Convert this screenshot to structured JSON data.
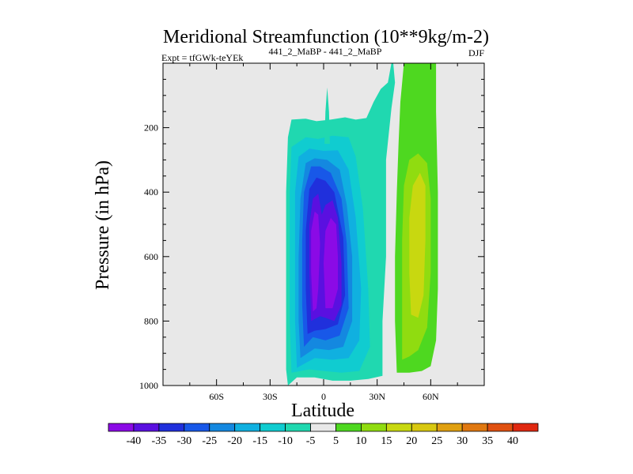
{
  "chart_data": {
    "type": "heatmap",
    "title": "Meridional Streamfunction (10**9kg/m-2)",
    "left_label": "Expt = tfGWk-teYEk",
    "center_label": "441_2_MaBP - 441_2_MaBP",
    "right_label": "DJF",
    "xlabel": "Latitude",
    "ylabel": "Pressure (in hPa)",
    "xlim": [
      -90,
      90
    ],
    "ylim": [
      1000,
      0
    ],
    "x_ticks": [
      {
        "value": -60,
        "label": "60S"
      },
      {
        "value": -30,
        "label": "30S"
      },
      {
        "value": 0,
        "label": "0"
      },
      {
        "value": 30,
        "label": "30N"
      },
      {
        "value": 60,
        "label": "60N"
      }
    ],
    "y_ticks": [
      {
        "value": 200,
        "label": "200"
      },
      {
        "value": 400,
        "label": "400"
      },
      {
        "value": 600,
        "label": "600"
      },
      {
        "value": 800,
        "label": "800"
      },
      {
        "value": 1000,
        "label": "1000"
      }
    ],
    "background_color": "#e8e8e8",
    "levels": [
      -40,
      -35,
      -30,
      -25,
      -20,
      -15,
      -10,
      -5,
      5,
      10,
      15,
      20,
      25,
      30,
      35,
      40
    ],
    "colorbar_colors": [
      "#8b0ae6",
      "#5a10e0",
      "#2030dc",
      "#1858e8",
      "#1488e0",
      "#10b0e0",
      "#10ccd0",
      "#20d8b0",
      "#e8e8e8",
      "#4ed820",
      "#90dc10",
      "#c8d810",
      "#d8c810",
      "#e0a010",
      "#e07810",
      "#e05010",
      "#e02810"
    ],
    "cells": [
      {
        "name": "southern-cell",
        "color": "#20d8b0",
        "value": -5,
        "points": [
          [
            -20,
            1000
          ],
          [
            -21,
            950
          ],
          [
            -21,
            800
          ],
          [
            -21,
            600
          ],
          [
            -21,
            400
          ],
          [
            -20,
            230
          ],
          [
            -18,
            175
          ],
          [
            -10,
            172
          ],
          [
            -4,
            180
          ],
          [
            4,
            175
          ],
          [
            12,
            168
          ],
          [
            18,
            175
          ],
          [
            24,
            170
          ],
          [
            28,
            120
          ],
          [
            32,
            80
          ],
          [
            36,
            60
          ],
          [
            38,
            0
          ],
          [
            39,
            0
          ],
          [
            40,
            60
          ],
          [
            38,
            140
          ],
          [
            35,
            300
          ],
          [
            35,
            600
          ],
          [
            33,
            800
          ],
          [
            33,
            970
          ],
          [
            25,
            980
          ],
          [
            15,
            985
          ],
          [
            5,
            985
          ],
          [
            -5,
            975
          ],
          [
            -15,
            975
          ]
        ]
      },
      {
        "name": "southern-cell",
        "color": "#10ccd0",
        "value": -10,
        "points": [
          [
            -18,
            960
          ],
          [
            -19,
            800
          ],
          [
            -19,
            600
          ],
          [
            -19,
            400
          ],
          [
            -18,
            260
          ],
          [
            -10,
            230
          ],
          [
            -3,
            235
          ],
          [
            5,
            225
          ],
          [
            14,
            230
          ],
          [
            18,
            290
          ],
          [
            22,
            450
          ],
          [
            25,
            700
          ],
          [
            26,
            880
          ],
          [
            20,
            955
          ],
          [
            10,
            960
          ],
          [
            0,
            955
          ],
          [
            -8,
            950
          ]
        ]
      },
      {
        "name": "southern-cell",
        "color": "#10b0e0",
        "value": -15,
        "points": [
          [
            -15,
            945
          ],
          [
            -16,
            800
          ],
          [
            -16,
            600
          ],
          [
            -16,
            400
          ],
          [
            -14,
            290
          ],
          [
            -8,
            265
          ],
          [
            0,
            272
          ],
          [
            8,
            270
          ],
          [
            14,
            330
          ],
          [
            18,
            480
          ],
          [
            21,
            700
          ],
          [
            20,
            860
          ],
          [
            14,
            915
          ],
          [
            5,
            920
          ],
          [
            -5,
            915
          ]
        ]
      },
      {
        "name": "southern-cell",
        "color": "#1488e0",
        "value": -20,
        "points": [
          [
            -13,
            915
          ],
          [
            -14,
            800
          ],
          [
            -14,
            600
          ],
          [
            -13,
            420
          ],
          [
            -10,
            310
          ],
          [
            -5,
            295
          ],
          [
            2,
            300
          ],
          [
            9,
            330
          ],
          [
            13,
            440
          ],
          [
            16,
            600
          ],
          [
            16,
            800
          ],
          [
            11,
            880
          ],
          [
            3,
            890
          ],
          [
            -5,
            885
          ]
        ]
      },
      {
        "name": "southern-cell",
        "color": "#1858e8",
        "value": -25,
        "points": [
          [
            -11,
            880
          ],
          [
            -12,
            750
          ],
          [
            -12,
            550
          ],
          [
            -11,
            400
          ],
          [
            -7,
            320
          ],
          [
            -2,
            320
          ],
          [
            4,
            340
          ],
          [
            10,
            420
          ],
          [
            13,
            560
          ],
          [
            14,
            760
          ],
          [
            9,
            845
          ],
          [
            1,
            860
          ],
          [
            -6,
            850
          ]
        ]
      },
      {
        "name": "southern-cell",
        "color": "#2030dc",
        "value": -30,
        "points": [
          [
            -9,
            840
          ],
          [
            -10,
            700
          ],
          [
            -10,
            520
          ],
          [
            -8,
            390
          ],
          [
            -4,
            355
          ],
          [
            1,
            365
          ],
          [
            6,
            400
          ],
          [
            11,
            540
          ],
          [
            12,
            720
          ],
          [
            8,
            810
          ],
          [
            1,
            825
          ],
          [
            -5,
            830
          ]
        ]
      },
      {
        "name": "southern-cell",
        "color": "#5a10e0",
        "value": -35,
        "points": [
          [
            -7,
            800
          ],
          [
            -8,
            650
          ],
          [
            -8,
            500
          ],
          [
            -6,
            420
          ],
          [
            -3,
            405
          ],
          [
            -1,
            470
          ],
          [
            1,
            440
          ],
          [
            5,
            425
          ],
          [
            8,
            480
          ],
          [
            10,
            620
          ],
          [
            10,
            750
          ],
          [
            6,
            800
          ],
          [
            1,
            790
          ],
          [
            -2,
            785
          ]
        ]
      },
      {
        "name": "southern-cell",
        "color": "#8b0ae6",
        "value": -40,
        "points": [
          [
            -6,
            770
          ],
          [
            -7,
            650
          ],
          [
            -7,
            520
          ],
          [
            -5,
            460
          ],
          [
            -3,
            470
          ],
          [
            -2,
            560
          ],
          [
            -3,
            700
          ],
          [
            -4,
            760
          ]
        ]
      },
      {
        "name": "southern-cell",
        "color": "#8b0ae6",
        "value": -40,
        "points": [
          [
            1,
            760
          ],
          [
            0,
            620
          ],
          [
            1,
            520
          ],
          [
            4,
            480
          ],
          [
            7,
            500
          ],
          [
            8,
            600
          ],
          [
            8,
            700
          ],
          [
            5,
            760
          ]
        ]
      },
      {
        "name": "southern-cell",
        "color": "#10ccd0",
        "value": -10,
        "points": [
          [
            1,
            230
          ],
          [
            1.5,
            150
          ],
          [
            2,
            90
          ],
          [
            2.5,
            150
          ],
          [
            3,
            230
          ]
        ]
      },
      {
        "name": "southern-cell",
        "color": "#20d8b0",
        "value": -5,
        "points": [
          [
            0.5,
            250
          ],
          [
            1,
            150
          ],
          [
            2,
            75
          ],
          [
            3,
            150
          ],
          [
            3.5,
            250
          ]
        ]
      },
      {
        "name": "northern-cell",
        "color": "#4ed820",
        "value": 5,
        "points": [
          [
            41,
            960
          ],
          [
            40,
            800
          ],
          [
            40,
            600
          ],
          [
            41,
            400
          ],
          [
            42,
            250
          ],
          [
            43,
            120
          ],
          [
            45,
            0
          ],
          [
            63,
            0
          ],
          [
            63,
            150
          ],
          [
            64,
            400
          ],
          [
            64,
            700
          ],
          [
            63,
            860
          ],
          [
            60,
            940
          ],
          [
            55,
            955
          ],
          [
            48,
            960
          ]
        ]
      },
      {
        "name": "northern-cell",
        "color": "#90dc10",
        "value": 10,
        "points": [
          [
            44,
            920
          ],
          [
            44,
            750
          ],
          [
            44,
            550
          ],
          [
            45,
            380
          ],
          [
            48,
            300
          ],
          [
            53,
            280
          ],
          [
            58,
            310
          ],
          [
            60,
            420
          ],
          [
            60,
            650
          ],
          [
            58,
            820
          ],
          [
            53,
            890
          ],
          [
            48,
            910
          ]
        ]
      },
      {
        "name": "northern-cell",
        "color": "#c8d810",
        "value": 15,
        "points": [
          [
            49,
            780
          ],
          [
            48,
            650
          ],
          [
            48,
            480
          ],
          [
            50,
            380
          ],
          [
            54,
            340
          ],
          [
            57,
            380
          ],
          [
            57,
            550
          ],
          [
            56,
            720
          ],
          [
            53,
            790
          ]
        ]
      },
      {
        "name": "northern-cell",
        "color": "#4ed820",
        "value": 5,
        "points": [
          [
            58,
            0
          ],
          [
            58,
            50
          ],
          [
            59,
            150
          ],
          [
            61,
            150
          ],
          [
            61,
            50
          ],
          [
            61,
            0
          ]
        ]
      }
    ],
    "colorbar_labels": [
      "-40",
      "-35",
      "-30",
      "-25",
      "-20",
      "-15",
      "-10",
      "-5",
      "5",
      "10",
      "15",
      "20",
      "25",
      "30",
      "35",
      "40"
    ]
  }
}
